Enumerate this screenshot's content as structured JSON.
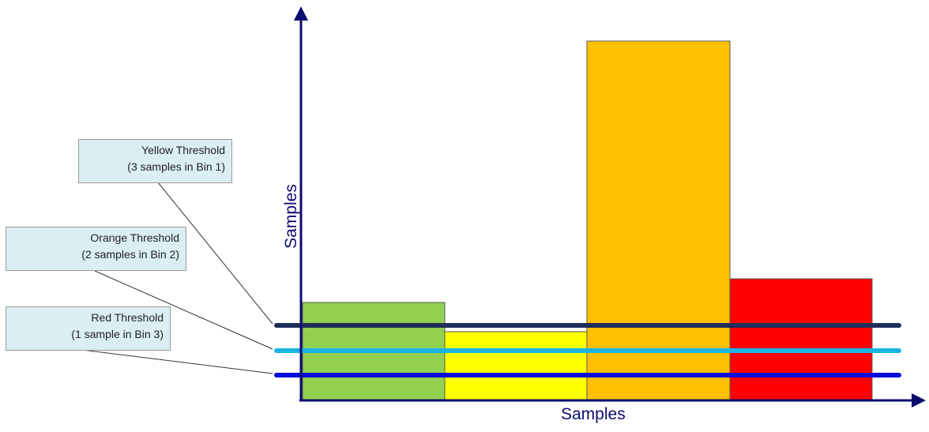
{
  "axes": {
    "y_label": "Samples",
    "x_label": "Samples"
  },
  "bars": [
    {
      "name": "bin-green",
      "color": "#92d050",
      "relative_height": 0.24
    },
    {
      "name": "bin-yellow",
      "color": "#ffff00",
      "relative_height": 0.16
    },
    {
      "name": "bin-orange",
      "color": "#ffc000",
      "relative_height": 0.95
    },
    {
      "name": "bin-red",
      "color": "#ff0000",
      "relative_height": 0.3
    }
  ],
  "threshold_lines": [
    {
      "name": "yellow-threshold-line",
      "color": "#1f2d5a"
    },
    {
      "name": "orange-threshold-line",
      "color": "#1ab5e3"
    },
    {
      "name": "red-threshold-line",
      "color": "#0a0adb"
    }
  ],
  "callouts": [
    {
      "line1": "Yellow Threshold",
      "line2": "(3 samples in Bin 1)"
    },
    {
      "line1": "Orange Threshold",
      "line2": "(2 samples in  Bin 2)"
    },
    {
      "line1": "Red Threshold",
      "line2": "(1 sample in Bin 3)"
    }
  ],
  "colors": {
    "axis": "#0b0b6e",
    "callout_fill": "#daeef3"
  }
}
